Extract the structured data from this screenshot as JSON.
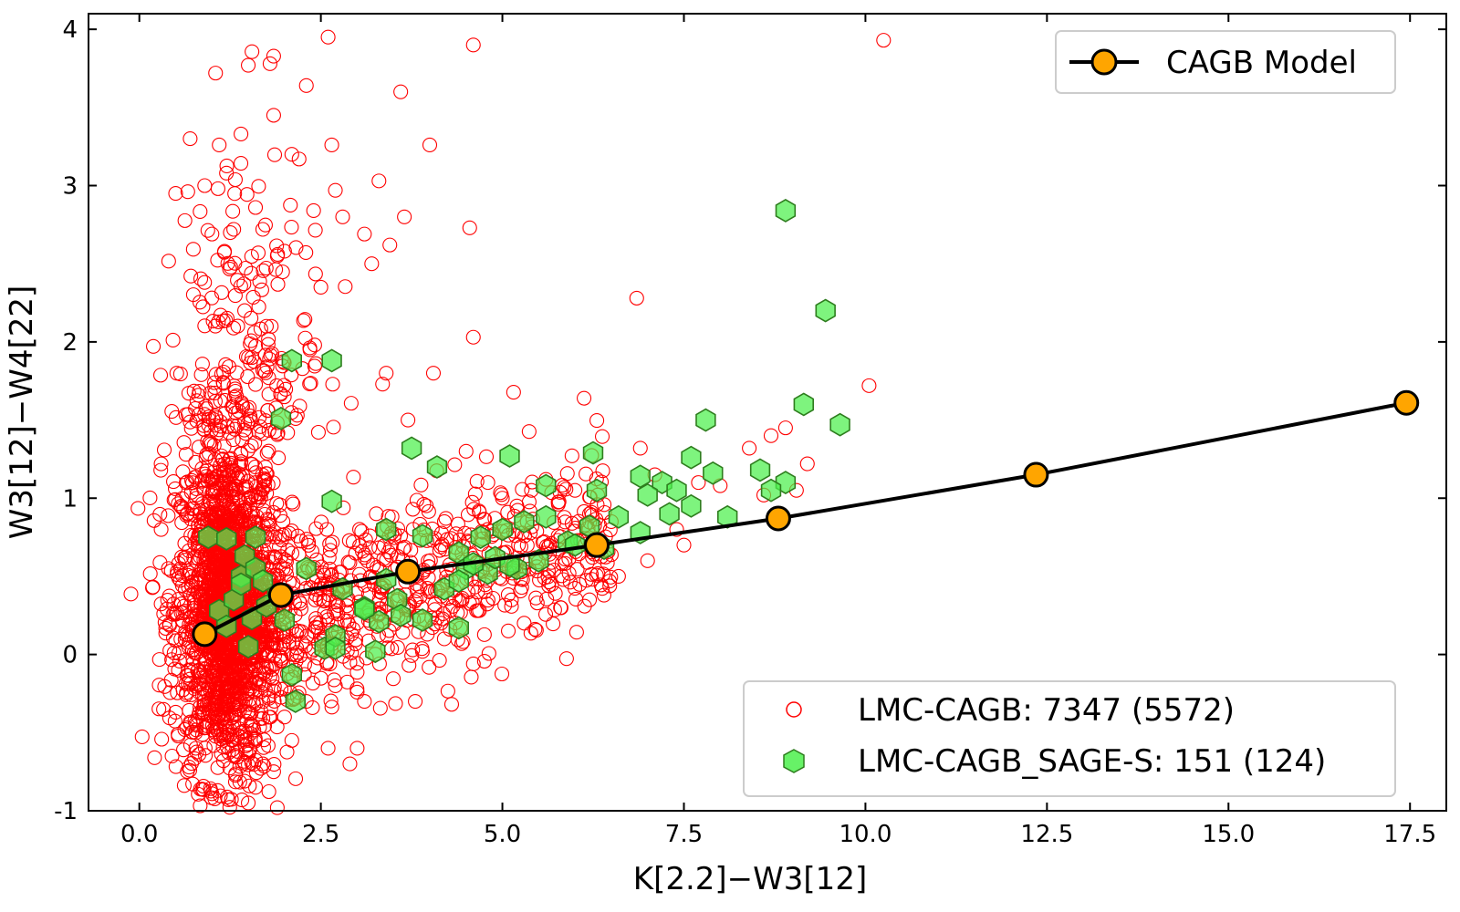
{
  "chart_data": {
    "type": "scatter",
    "xlabel": "K[2.2]−W3[12]",
    "ylabel": "W3[12]−W4[22]",
    "xlim": [
      -0.7,
      18.0
    ],
    "ylim": [
      -1.0,
      4.1
    ],
    "x_ticks": [
      0.0,
      2.5,
      5.0,
      7.5,
      10.0,
      12.5,
      15.0,
      17.5
    ],
    "x_tick_labels": [
      "0.0",
      "2.5",
      "5.0",
      "7.5",
      "10.0",
      "12.5",
      "15.0",
      "17.5"
    ],
    "y_ticks": [
      -1,
      0,
      1,
      2,
      3,
      4
    ],
    "y_tick_labels": [
      "-1",
      "0",
      "1",
      "2",
      "3",
      "4"
    ],
    "grid": false,
    "colors": {
      "lmc_cagb": "#ff0000",
      "sage_fill": "#4cf04c",
      "sage_edge": "#2e7d1e",
      "model_marker": "#ffa500",
      "model_line": "#000000"
    },
    "series": [
      {
        "name": "CAGB Model",
        "legend_location": "top-right",
        "marker": "circle-filled",
        "x": [
          0.9,
          1.95,
          3.7,
          6.3,
          8.8,
          12.35,
          17.45
        ],
        "y": [
          0.13,
          0.38,
          0.53,
          0.7,
          0.87,
          1.15,
          1.61
        ]
      },
      {
        "name": "LMC-CAGB: 7347 (5572)",
        "legend_location": "bottom-right",
        "marker": "circle-open",
        "x": [
          0.3,
          0.5,
          0.7,
          1.05,
          1.1,
          1.5,
          1.8,
          1.85,
          2.3,
          2.6,
          2.65,
          3.6,
          4.6,
          10.25,
          0.9,
          1.2,
          1.4,
          2.1,
          2.2,
          2.7,
          3.3,
          3.65,
          4.0,
          1.0,
          1.3,
          1.6,
          1.7,
          2.0,
          2.4,
          2.8,
          3.1,
          3.45,
          4.55,
          6.85,
          1.45,
          1.9,
          2.5,
          3.2,
          1.55,
          1.75,
          2.35,
          3.4,
          3.35,
          4.05,
          4.6,
          10.05,
          0.3,
          0.4,
          3.7,
          4.5,
          4.8,
          5.0,
          5.2,
          5.4,
          5.6,
          6.0,
          6.2,
          6.5,
          6.9,
          7.1,
          7.4,
          7.7,
          8.0,
          8.4,
          8.6,
          8.9,
          9.05,
          9.2,
          8.7,
          2.9,
          3.0,
          3.1,
          4.6,
          1.4,
          1.7,
          2.3,
          2.6,
          3.8,
          4.2,
          5.3,
          5.8,
          6.2,
          6.6,
          7.0,
          7.5,
          2.1,
          2.5,
          3.0,
          3.5,
          4.0,
          1.5,
          2.0,
          2.7,
          2.9,
          1.35,
          1.6,
          1.85,
          1.9,
          2.1
        ],
        "y": [
          1.22,
          2.95,
          3.3,
          3.72,
          3.26,
          3.77,
          3.78,
          3.45,
          3.64,
          3.95,
          3.26,
          3.6,
          3.9,
          3.93,
          3.0,
          3.08,
          3.33,
          3.2,
          3.17,
          2.97,
          3.03,
          2.8,
          3.26,
          2.69,
          2.72,
          2.86,
          2.72,
          2.58,
          2.84,
          2.8,
          2.69,
          2.62,
          2.73,
          2.28,
          2.2,
          2.55,
          2.35,
          2.5,
          1.9,
          2.1,
          1.95,
          1.8,
          1.73,
          1.8,
          2.03,
          1.72,
          0.8,
          0.55,
          1.5,
          1.3,
          1.1,
          1.0,
          0.95,
          1.05,
          1.12,
          1.05,
          0.9,
          0.85,
          1.32,
          1.15,
          0.8,
          1.1,
          1.08,
          1.32,
          1.02,
          1.45,
          1.05,
          1.22,
          1.4,
          -0.7,
          -0.6,
          -0.3,
          -0.06,
          -0.5,
          -0.7,
          -0.3,
          -0.6,
          -0.3,
          0.1,
          0.2,
          0.3,
          0.35,
          0.5,
          0.6,
          0.7,
          0.0,
          0.1,
          0.2,
          0.25,
          0.4,
          -0.95,
          -0.4,
          -0.2,
          -0.05,
          -0.62,
          -0.85,
          -0.75,
          -0.98,
          -0.55
        ]
      },
      {
        "name": "LMC-CAGB_SAGE-S: 151 (124)",
        "legend_location": "bottom-right",
        "marker": "hexagon",
        "x": [
          8.9,
          9.45,
          2.1,
          2.65,
          9.15,
          7.8,
          9.65,
          1.95,
          3.75,
          4.1,
          5.1,
          6.25,
          7.6,
          7.9,
          8.55,
          8.9,
          2.65,
          5.6,
          6.3,
          6.9,
          7.2,
          8.7,
          3.4,
          3.9,
          4.4,
          4.7,
          5.0,
          5.3,
          5.6,
          5.9,
          6.2,
          6.6,
          7.0,
          7.4,
          7.6,
          8.1,
          0.95,
          1.2,
          1.45,
          1.6,
          1.4,
          1.1,
          1.3,
          1.9,
          2.3,
          2.8,
          3.1,
          3.55,
          4.2,
          4.5,
          4.8,
          5.2,
          5.5,
          6.0,
          6.4,
          6.9,
          7.3,
          1.4,
          1.6,
          1.7,
          2.0,
          1.2,
          1.55,
          1.5,
          2.55,
          3.25,
          3.6,
          3.9,
          4.4,
          4.6,
          4.9,
          5.1,
          2.1,
          2.7,
          3.3,
          3.1,
          1.75,
          2.7,
          3.4,
          4.4,
          2.15
        ],
        "y": [
          2.84,
          2.2,
          1.88,
          1.88,
          1.6,
          1.5,
          1.47,
          1.51,
          1.32,
          1.2,
          1.27,
          1.29,
          1.26,
          1.16,
          1.18,
          1.1,
          0.98,
          1.08,
          1.05,
          1.14,
          1.1,
          1.05,
          0.8,
          0.76,
          0.65,
          0.75,
          0.8,
          0.85,
          0.88,
          0.72,
          0.82,
          0.88,
          1.02,
          1.05,
          0.95,
          0.88,
          0.75,
          0.74,
          0.63,
          0.75,
          0.5,
          0.28,
          0.35,
          0.38,
          0.55,
          0.42,
          0.3,
          0.35,
          0.42,
          0.55,
          0.52,
          0.55,
          0.6,
          0.7,
          0.68,
          0.78,
          0.9,
          0.45,
          0.55,
          0.47,
          0.22,
          0.18,
          0.23,
          0.05,
          0.04,
          0.02,
          0.25,
          0.22,
          0.17,
          0.58,
          0.62,
          0.57,
          -0.13,
          0.12,
          0.21,
          0.29,
          0.31,
          0.04,
          0.48,
          0.47,
          -0.3
        ]
      }
    ],
    "dense_cloud": {
      "series": "LMC-CAGB: 7347 (5572)",
      "x_center": 1.2,
      "x_tail_to": 6.5,
      "y_center": 0.3
    }
  }
}
